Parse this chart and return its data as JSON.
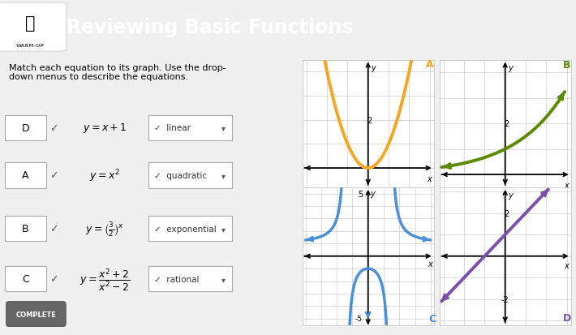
{
  "title": "Reviewing Basic Functions",
  "header_bg": "#4d4d4d",
  "body_bg": "#f0f0f0",
  "instruction_text": "Match each equation to its graph. Use the drop-\ndown menus to describe the equations.",
  "graph_A": {
    "color": "#f5a623",
    "label": "A"
  },
  "graph_B": {
    "color": "#5a8a00",
    "label": "B"
  },
  "graph_C": {
    "color": "#4a90d9",
    "label": "C"
  },
  "graph_D": {
    "color": "#7b4faa",
    "label": "D"
  },
  "complete_bg": "#666666",
  "complete_text": "COMPLETE",
  "row_labels": [
    "D",
    "A",
    "B",
    "C"
  ],
  "row_eq_latex": [
    "$y = x + 1$",
    "$y = x^2$",
    "$y = \\left(\\frac{3}{2}\\right)^{\\!x}$",
    "$y = \\dfrac{x^2+2}{x^2-2}$"
  ],
  "row_types": [
    "linear",
    "quadratic",
    "exponential",
    "rational"
  ]
}
